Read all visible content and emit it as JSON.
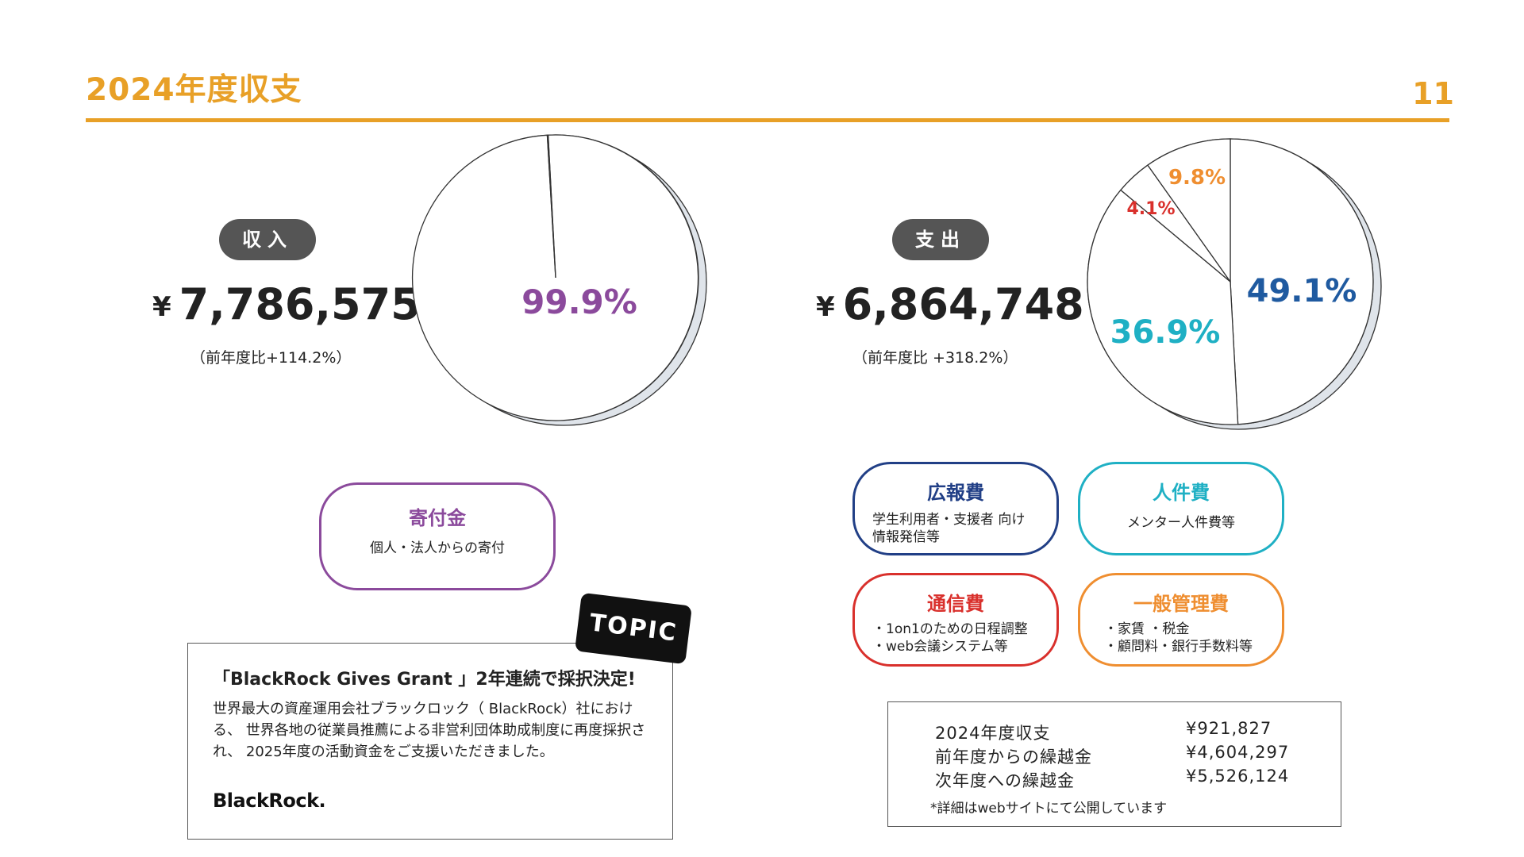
{
  "header": {
    "title": "2024年度収支",
    "page_number": "11"
  },
  "income": {
    "label": "収入",
    "currency": "¥",
    "amount": "7,786,575",
    "yoy": "（前年度比+114.2%）"
  },
  "expense": {
    "label": "支出",
    "currency": "¥",
    "amount": "6,864,748",
    "yoy": "（前年度比 +318.2%）"
  },
  "chart_data": [
    {
      "type": "pie",
      "slices": [
        {
          "label": "寄付金",
          "display": "99.9%",
          "value": 99.9,
          "color": "#8b4a9c"
        },
        {
          "label": "",
          "display": "",
          "value": 0.1,
          "color": "#8b4a9c"
        }
      ]
    },
    {
      "type": "pie",
      "slices": [
        {
          "label": "広報費",
          "display": "49.1%",
          "value": 49.1,
          "color": "#1f5aa0"
        },
        {
          "label": "人件費",
          "display": "36.9%",
          "value": 36.9,
          "color": "#1fb0c4"
        },
        {
          "label": "通信費",
          "display": "4.1%",
          "value": 4.1,
          "color": "#d9302c"
        },
        {
          "label": "一般管理費",
          "display": "9.8%",
          "value": 9.8,
          "color": "#ef8e30"
        }
      ]
    }
  ],
  "categories": {
    "donation": {
      "title": "寄付金",
      "desc": "個人・法人からの寄付"
    },
    "pr": {
      "title": "広報費",
      "desc": "学生利用者・支援者 向け\n情報発信等"
    },
    "personnel": {
      "title": "人件費",
      "desc": "メンター人件費等"
    },
    "comm": {
      "title": "通信費",
      "desc": "・1on1のための日程調整\n・web会議システム等"
    },
    "admin": {
      "title": "一般管理費",
      "desc": "・家賃 ・税金\n・顧問料・銀行手数料等"
    }
  },
  "topic": {
    "tag": "TOPIC",
    "headline": "「BlackRock Gives Grant 」2年連続で採択決定!",
    "body": "世界最大の資産運用会社ブラックロック（ BlackRock）社における、 世界各地の従業員推薦による非営利団体助成制度に再度採択され、 2025年度の活動資金をご支援いただきました。",
    "logo": "BlackRock."
  },
  "summary": {
    "rows": [
      {
        "label": "2024年度収支",
        "value": "¥921,827"
      },
      {
        "label": "前年度からの繰越金",
        "value": "¥4,604,297"
      },
      {
        "label": "次年度への繰越金",
        "value": "¥5,526,124"
      }
    ],
    "note": "*詳細はwebサイトにて公開しています"
  }
}
